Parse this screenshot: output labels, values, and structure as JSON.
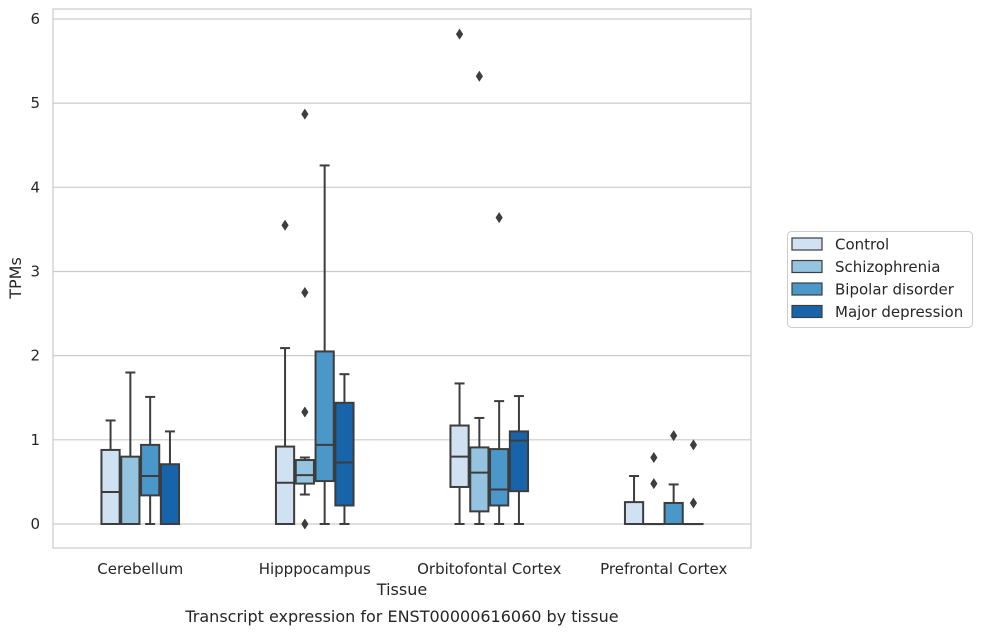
{
  "caption": "Transcript expression for ENST00000616060 by tissue",
  "chart_data": {
    "type": "box",
    "title": "",
    "xlabel": "Tissue",
    "ylabel": "TPMs",
    "ylim": [
      -0.28,
      6.1
    ],
    "yticks": [
      0,
      1,
      2,
      3,
      4,
      5,
      6
    ],
    "grid": "horizontal",
    "legend_position": "right",
    "categories": [
      "Cerebellum",
      "Hipppocampus",
      "Orbitofontal Cortex",
      "Prefrontal Cortex"
    ],
    "series": [
      {
        "name": "Control",
        "color": "#d0e1f2",
        "boxes": [
          {
            "q1": 0,
            "median": 0.38,
            "q3": 0.88,
            "whislo": 0,
            "whishi": 1.23,
            "fliers": []
          },
          {
            "q1": 0,
            "median": 0.49,
            "q3": 0.92,
            "whislo": 0,
            "whishi": 2.09,
            "fliers": [
              3.55
            ]
          },
          {
            "q1": 0.44,
            "median": 0.8,
            "q3": 1.17,
            "whislo": 0,
            "whishi": 1.67,
            "fliers": [
              5.82
            ]
          },
          {
            "q1": 0,
            "median": 0,
            "q3": 0.26,
            "whislo": 0,
            "whishi": 0.57,
            "fliers": []
          }
        ]
      },
      {
        "name": "Schizophrenia",
        "color": "#94c4df",
        "boxes": [
          {
            "q1": 0,
            "median": 0,
            "q3": 0.8,
            "whislo": 0,
            "whishi": 1.8,
            "fliers": []
          },
          {
            "q1": 0.48,
            "median": 0.58,
            "q3": 0.76,
            "whislo": 0.35,
            "whishi": 0.79,
            "fliers": [
              0,
              1.33,
              2.75,
              4.87
            ]
          },
          {
            "q1": 0.15,
            "median": 0.61,
            "q3": 0.91,
            "whislo": 0,
            "whishi": 1.26,
            "fliers": [
              5.32
            ]
          },
          {
            "q1": 0,
            "median": 0,
            "q3": 0,
            "whislo": 0,
            "whishi": 0,
            "fliers": [
              0.48,
              0.79
            ]
          }
        ]
      },
      {
        "name": "Bipolar disorder",
        "color": "#4a98c9",
        "boxes": [
          {
            "q1": 0.34,
            "median": 0.57,
            "q3": 0.94,
            "whislo": 0,
            "whishi": 1.51,
            "fliers": []
          },
          {
            "q1": 0.51,
            "median": 0.94,
            "q3": 2.05,
            "whislo": 0,
            "whishi": 4.26,
            "fliers": []
          },
          {
            "q1": 0.22,
            "median": 0.41,
            "q3": 0.89,
            "whislo": 0,
            "whishi": 1.46,
            "fliers": [
              3.64
            ]
          },
          {
            "q1": 0,
            "median": 0,
            "q3": 0.25,
            "whislo": 0,
            "whishi": 0.47,
            "fliers": [
              1.05
            ]
          }
        ]
      },
      {
        "name": "Major depression",
        "color": "#1764ab",
        "boxes": [
          {
            "q1": 0,
            "median": 0,
            "q3": 0.71,
            "whislo": 0,
            "whishi": 1.1,
            "fliers": []
          },
          {
            "q1": 0.22,
            "median": 0.73,
            "q3": 1.44,
            "whislo": 0,
            "whishi": 1.78,
            "fliers": []
          },
          {
            "q1": 0.39,
            "median": 0.99,
            "q3": 1.1,
            "whislo": 0,
            "whishi": 1.52,
            "fliers": []
          },
          {
            "q1": 0,
            "median": 0,
            "q3": 0,
            "whislo": 0,
            "whishi": 0,
            "fliers": [
              0.25,
              0.94
            ]
          }
        ]
      }
    ]
  }
}
